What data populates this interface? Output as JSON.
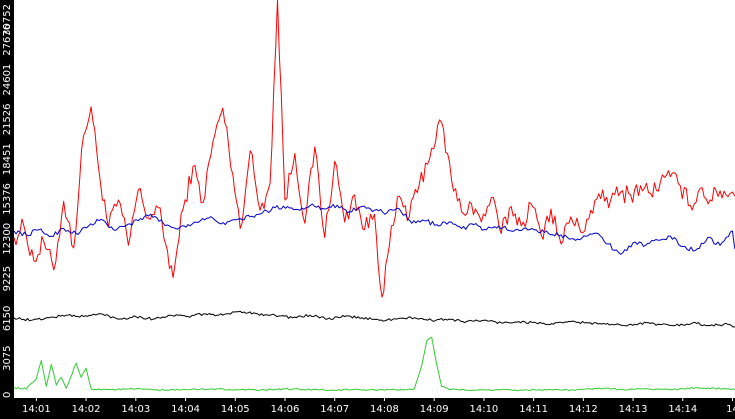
{
  "chart_data": {
    "type": "line",
    "title": "",
    "xlabel": "",
    "ylabel": "",
    "grid": false,
    "legend": "none",
    "background": "#000000",
    "plot_background": "#ffffff",
    "axis_text_color": "#ffffff",
    "x_unit": "minutes after 14:00",
    "xlim": [
      0.55,
      15.05
    ],
    "ylim": [
      0,
      30752
    ],
    "x_ticks": [
      {
        "value": 1,
        "label": "14:01"
      },
      {
        "value": 2,
        "label": "14:02"
      },
      {
        "value": 3,
        "label": "14:03"
      },
      {
        "value": 4,
        "label": "14:04"
      },
      {
        "value": 5,
        "label": "14:05"
      },
      {
        "value": 6,
        "label": "14:06"
      },
      {
        "value": 7,
        "label": "14:07"
      },
      {
        "value": 8,
        "label": "14:08"
      },
      {
        "value": 9,
        "label": "14:09"
      },
      {
        "value": 10,
        "label": "14:10"
      },
      {
        "value": 11,
        "label": "14:11"
      },
      {
        "value": 12,
        "label": "14:12"
      },
      {
        "value": 13,
        "label": "14:13"
      },
      {
        "value": 14,
        "label": "14:14"
      },
      {
        "value": 15,
        "label": "14"
      }
    ],
    "y_ticks": [
      {
        "value": 0,
        "label": "0"
      },
      {
        "value": 3075,
        "label": "3075"
      },
      {
        "value": 6150,
        "label": "6150"
      },
      {
        "value": 9225,
        "label": "9225"
      },
      {
        "value": 12300,
        "label": "12300"
      },
      {
        "value": 15376,
        "label": "15376"
      },
      {
        "value": 18451,
        "label": "18451"
      },
      {
        "value": 21526,
        "label": "21526"
      },
      {
        "value": 24601,
        "label": "24601"
      },
      {
        "value": 27676,
        "label": "27676"
      },
      {
        "value": 30752,
        "label": "30752"
      }
    ],
    "series": [
      {
        "color": "#ff0000",
        "points": [
          [
            0.55,
            12400
          ],
          [
            0.75,
            13300
          ],
          [
            0.95,
            10600
          ],
          [
            1.15,
            12100
          ],
          [
            1.35,
            9900
          ],
          [
            1.55,
            15200
          ],
          [
            1.75,
            11600
          ],
          [
            1.95,
            20300
          ],
          [
            2.1,
            22500
          ],
          [
            2.25,
            17800
          ],
          [
            2.45,
            13200
          ],
          [
            2.65,
            15300
          ],
          [
            2.85,
            11800
          ],
          [
            3.05,
            16100
          ],
          [
            3.25,
            13900
          ],
          [
            3.45,
            14700
          ],
          [
            3.6,
            11900
          ],
          [
            3.75,
            9300
          ],
          [
            3.95,
            14600
          ],
          [
            4.15,
            17900
          ],
          [
            4.35,
            15100
          ],
          [
            4.55,
            19800
          ],
          [
            4.75,
            22400
          ],
          [
            4.95,
            17300
          ],
          [
            5.1,
            13100
          ],
          [
            5.3,
            19100
          ],
          [
            5.5,
            14500
          ],
          [
            5.7,
            16600
          ],
          [
            5.85,
            30752
          ],
          [
            6.0,
            15300
          ],
          [
            6.2,
            18900
          ],
          [
            6.4,
            13500
          ],
          [
            6.6,
            19400
          ],
          [
            6.8,
            12400
          ],
          [
            7.0,
            18300
          ],
          [
            7.2,
            13600
          ],
          [
            7.4,
            15700
          ],
          [
            7.6,
            13000
          ],
          [
            7.8,
            14200
          ],
          [
            7.95,
            7800
          ],
          [
            8.1,
            11800
          ],
          [
            8.3,
            15600
          ],
          [
            8.5,
            14000
          ],
          [
            8.7,
            16500
          ],
          [
            8.95,
            19300
          ],
          [
            9.15,
            21300
          ],
          [
            9.35,
            16800
          ],
          [
            9.55,
            14400
          ],
          [
            9.75,
            15000
          ],
          [
            9.95,
            13600
          ],
          [
            10.15,
            15500
          ],
          [
            10.35,
            12700
          ],
          [
            10.55,
            14800
          ],
          [
            10.75,
            13300
          ],
          [
            10.95,
            15000
          ],
          [
            11.15,
            12600
          ],
          [
            11.35,
            14600
          ],
          [
            11.55,
            11900
          ],
          [
            11.75,
            14000
          ],
          [
            11.95,
            12800
          ],
          [
            12.15,
            14500
          ],
          [
            12.35,
            15400
          ],
          [
            12.55,
            15300
          ],
          [
            12.75,
            15900
          ],
          [
            12.95,
            15700
          ],
          [
            13.15,
            16400
          ],
          [
            13.35,
            15800
          ],
          [
            13.55,
            16700
          ],
          [
            13.75,
            17100
          ],
          [
            13.95,
            16400
          ],
          [
            14.15,
            14900
          ],
          [
            14.35,
            16200
          ],
          [
            14.55,
            15300
          ],
          [
            14.75,
            16000
          ],
          [
            14.95,
            15800
          ],
          [
            15.05,
            15600
          ]
        ]
      },
      {
        "color": "#0000cc",
        "points": [
          [
            0.55,
            12900
          ],
          [
            0.8,
            12600
          ],
          [
            1.05,
            13000
          ],
          [
            1.3,
            12500
          ],
          [
            1.55,
            13100
          ],
          [
            1.8,
            12700
          ],
          [
            2.05,
            13300
          ],
          [
            2.3,
            13800
          ],
          [
            2.55,
            13000
          ],
          [
            2.8,
            13300
          ],
          [
            3.05,
            13700
          ],
          [
            3.3,
            14200
          ],
          [
            3.55,
            13500
          ],
          [
            3.8,
            13100
          ],
          [
            4.05,
            13400
          ],
          [
            4.3,
            13700
          ],
          [
            4.55,
            13900
          ],
          [
            4.8,
            13400
          ],
          [
            5.05,
            13800
          ],
          [
            5.3,
            14000
          ],
          [
            5.55,
            14300
          ],
          [
            5.8,
            14700
          ],
          [
            6.05,
            14800
          ],
          [
            6.3,
            14500
          ],
          [
            6.55,
            15000
          ],
          [
            6.8,
            14600
          ],
          [
            7.05,
            14900
          ],
          [
            7.3,
            14400
          ],
          [
            7.55,
            14800
          ],
          [
            7.8,
            14500
          ],
          [
            8.05,
            14300
          ],
          [
            8.3,
            14600
          ],
          [
            8.55,
            13500
          ],
          [
            8.8,
            13700
          ],
          [
            9.05,
            13400
          ],
          [
            9.3,
            13600
          ],
          [
            9.55,
            13100
          ],
          [
            9.8,
            13400
          ],
          [
            10.05,
            13000
          ],
          [
            10.3,
            13300
          ],
          [
            10.55,
            12900
          ],
          [
            10.8,
            13100
          ],
          [
            11.05,
            13000
          ],
          [
            11.3,
            12700
          ],
          [
            11.55,
            12600
          ],
          [
            11.8,
            12300
          ],
          [
            12.05,
            12500
          ],
          [
            12.3,
            12700
          ],
          [
            12.5,
            11900
          ],
          [
            12.75,
            11100
          ],
          [
            13.0,
            12000
          ],
          [
            13.25,
            11800
          ],
          [
            13.5,
            12200
          ],
          [
            13.75,
            12500
          ],
          [
            14.0,
            11700
          ],
          [
            14.25,
            11400
          ],
          [
            14.5,
            12400
          ],
          [
            14.75,
            11800
          ],
          [
            15.0,
            12900
          ],
          [
            15.05,
            11500
          ]
        ]
      },
      {
        "color": "#000000",
        "points": [
          [
            0.55,
            6200
          ],
          [
            0.9,
            6000
          ],
          [
            1.25,
            6200
          ],
          [
            1.6,
            6400
          ],
          [
            1.95,
            6300
          ],
          [
            2.3,
            6500
          ],
          [
            2.65,
            6100
          ],
          [
            3.0,
            6300
          ],
          [
            3.35,
            6100
          ],
          [
            3.7,
            6400
          ],
          [
            4.05,
            6300
          ],
          [
            4.4,
            6500
          ],
          [
            4.75,
            6400
          ],
          [
            5.1,
            6700
          ],
          [
            5.45,
            6500
          ],
          [
            5.8,
            6400
          ],
          [
            6.15,
            6200
          ],
          [
            6.5,
            6400
          ],
          [
            6.85,
            6100
          ],
          [
            7.2,
            6300
          ],
          [
            7.55,
            6200
          ],
          [
            7.9,
            6000
          ],
          [
            8.25,
            6100
          ],
          [
            8.6,
            6200
          ],
          [
            8.95,
            6000
          ],
          [
            9.3,
            6100
          ],
          [
            9.65,
            5900
          ],
          [
            10.0,
            6000
          ],
          [
            10.35,
            5800
          ],
          [
            10.7,
            5900
          ],
          [
            11.05,
            5800
          ],
          [
            11.4,
            5700
          ],
          [
            11.75,
            5900
          ],
          [
            12.1,
            5800
          ],
          [
            12.45,
            5700
          ],
          [
            12.8,
            5600
          ],
          [
            13.15,
            5800
          ],
          [
            13.5,
            5700
          ],
          [
            13.85,
            5600
          ],
          [
            14.2,
            5800
          ],
          [
            14.55,
            5600
          ],
          [
            14.9,
            5700
          ],
          [
            15.05,
            5500
          ]
        ]
      },
      {
        "color": "#33cc33",
        "points": [
          [
            0.55,
            800
          ],
          [
            0.8,
            700
          ],
          [
            1.0,
            1500
          ],
          [
            1.1,
            2900
          ],
          [
            1.2,
            900
          ],
          [
            1.3,
            2600
          ],
          [
            1.4,
            1000
          ],
          [
            1.5,
            1600
          ],
          [
            1.6,
            750
          ],
          [
            1.8,
            2700
          ],
          [
            1.9,
            1600
          ],
          [
            2.0,
            2300
          ],
          [
            2.1,
            700
          ],
          [
            2.5,
            650
          ],
          [
            3.0,
            700
          ],
          [
            3.5,
            600
          ],
          [
            4.0,
            650
          ],
          [
            4.5,
            700
          ],
          [
            5.0,
            650
          ],
          [
            5.5,
            600
          ],
          [
            6.0,
            700
          ],
          [
            6.5,
            650
          ],
          [
            7.0,
            600
          ],
          [
            7.5,
            650
          ],
          [
            8.0,
            600
          ],
          [
            8.4,
            650
          ],
          [
            8.6,
            700
          ],
          [
            8.75,
            2500
          ],
          [
            8.85,
            4400
          ],
          [
            8.95,
            4700
          ],
          [
            9.05,
            2600
          ],
          [
            9.15,
            900
          ],
          [
            9.3,
            650
          ],
          [
            9.8,
            600
          ],
          [
            10.3,
            650
          ],
          [
            10.8,
            600
          ],
          [
            11.3,
            650
          ],
          [
            11.8,
            600
          ],
          [
            12.3,
            750
          ],
          [
            12.8,
            650
          ],
          [
            13.3,
            700
          ],
          [
            13.8,
            650
          ],
          [
            14.3,
            800
          ],
          [
            14.8,
            700
          ],
          [
            15.05,
            650
          ]
        ]
      }
    ]
  }
}
